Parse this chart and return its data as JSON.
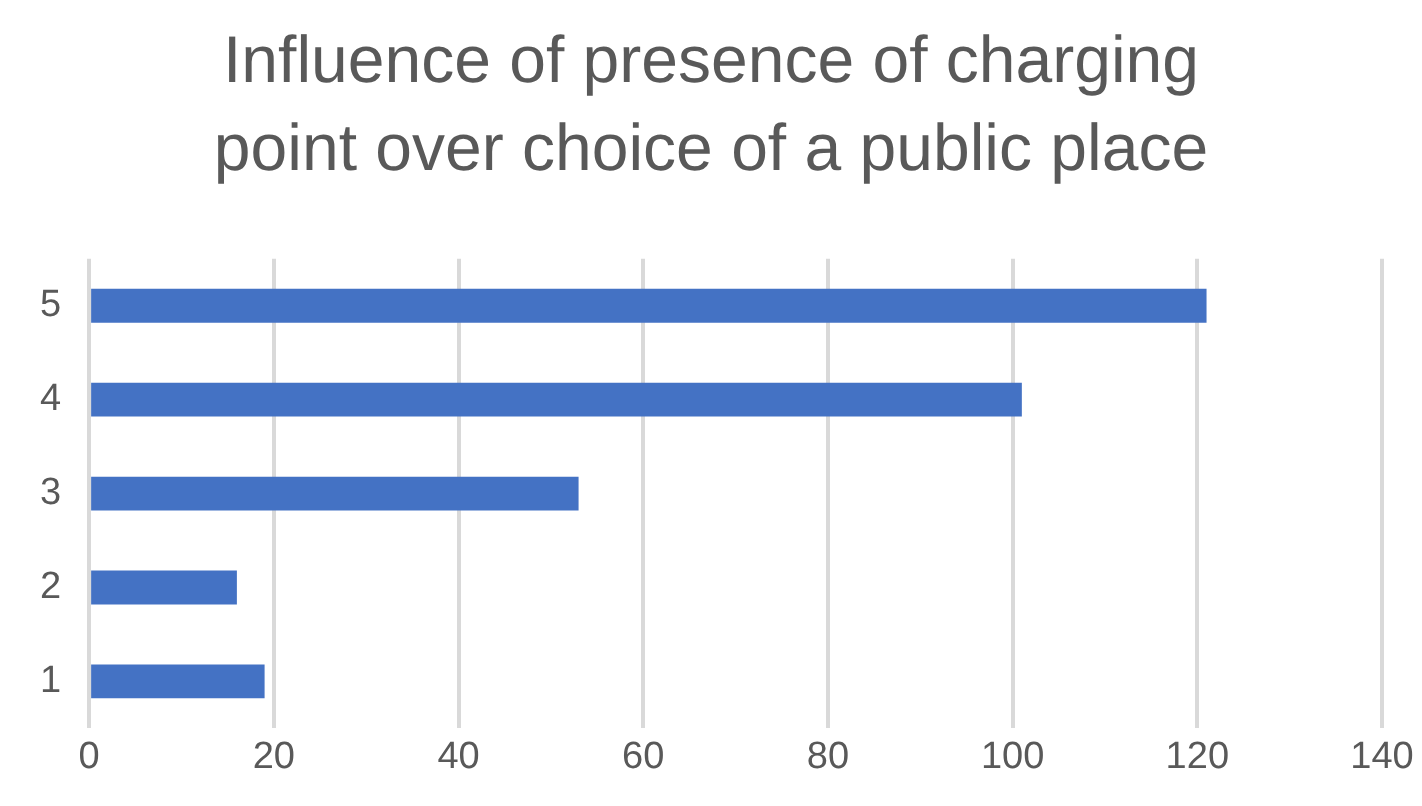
{
  "chart_data": {
    "type": "bar",
    "orientation": "horizontal",
    "title": "Influence of presence of charging point over choice of a public place",
    "categories": [
      "5",
      "4",
      "3",
      "2",
      "1"
    ],
    "values": [
      121,
      101,
      53,
      16,
      19
    ],
    "color": "#4472c4",
    "xlim": [
      0,
      140
    ],
    "xticks": [
      0,
      20,
      40,
      60,
      80,
      100,
      120,
      140
    ],
    "grid": "x",
    "legend": false
  }
}
